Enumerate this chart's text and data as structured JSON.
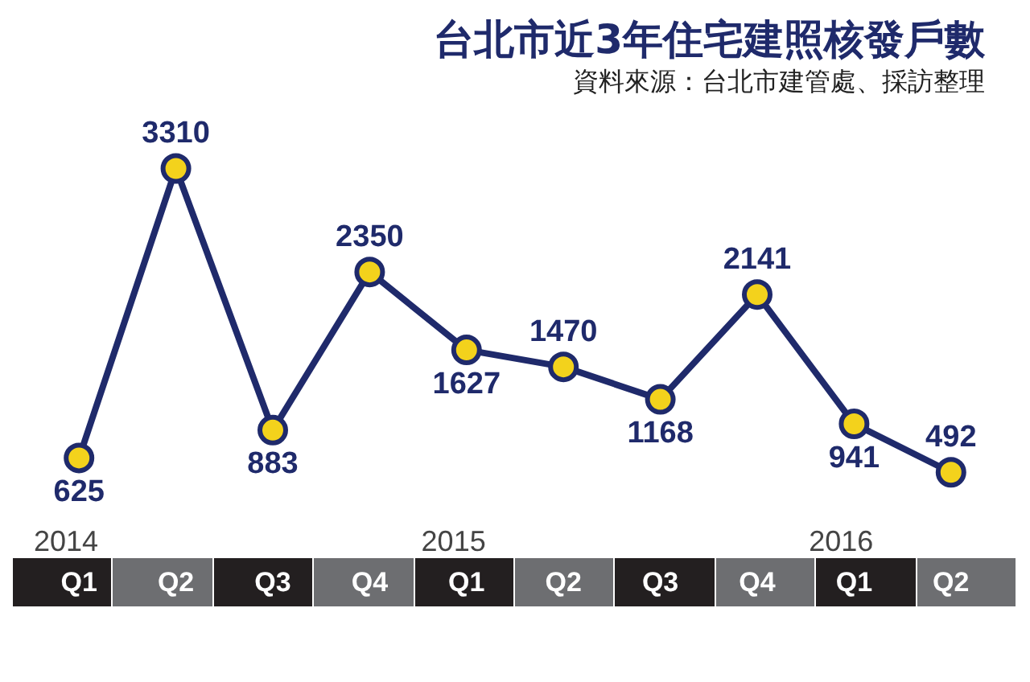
{
  "chart_data": {
    "type": "line",
    "title": "台北市近3年住宅建照核發戶數",
    "subtitle": "資料來源：台北市建管處、採訪整理",
    "categories": [
      "2014\nQ1",
      "Q2",
      "Q3",
      "Q4",
      "2015\nQ1",
      "Q2",
      "Q3",
      "Q4",
      "2016\nQ1",
      "Q2"
    ],
    "series": [
      {
        "color": "#1f2a6b",
        "values": [
          625,
          3310,
          883,
          2350,
          1627,
          1470,
          1168,
          2141,
          941,
          492
        ]
      }
    ],
    "data_labels": true,
    "marker": "circle",
    "line_style": "solid",
    "grid": false,
    "legend": false
  }
}
